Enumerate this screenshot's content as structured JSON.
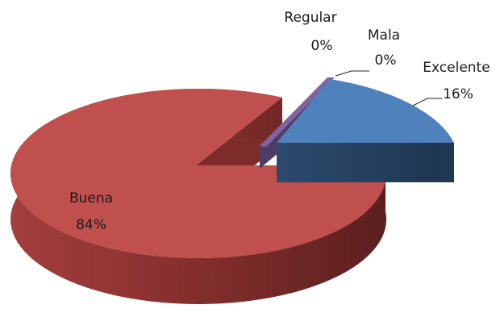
{
  "chart_data": {
    "type": "pie",
    "title": "",
    "style": "3d-exploded",
    "legend": "none",
    "slices": [
      {
        "category": "Excelente",
        "value": 16,
        "label": "16%",
        "color": "#4f81bd"
      },
      {
        "category": "Buena",
        "value": 84,
        "label": "84%",
        "color": "#c0504d"
      },
      {
        "category": "Regular",
        "value": 0,
        "label": "0%",
        "color": "#8064a2"
      },
      {
        "category": "Mala",
        "value": 0,
        "label": "0%",
        "color": "#9bbb59"
      }
    ]
  }
}
